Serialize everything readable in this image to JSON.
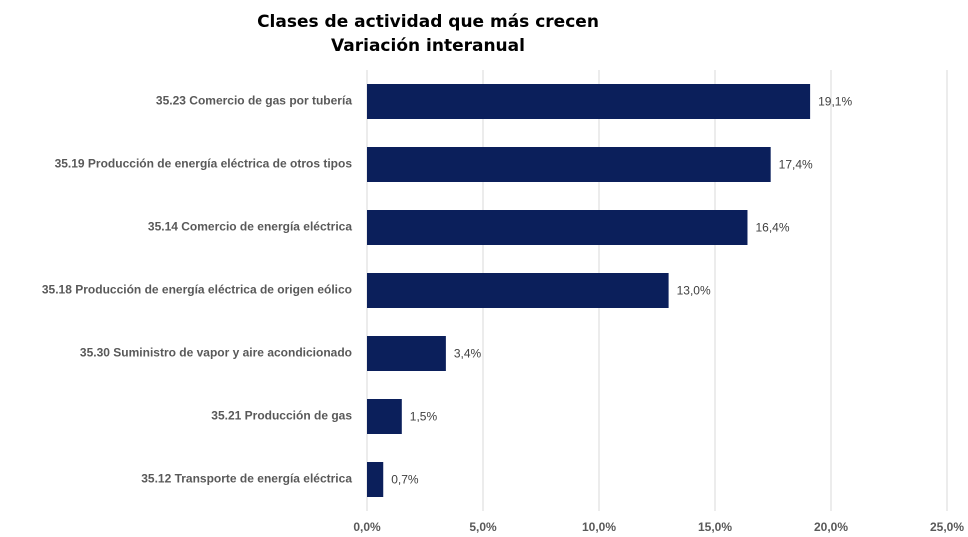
{
  "chart_data": {
    "type": "bar",
    "orientation": "horizontal",
    "title": "Clases de actividad que más crecen",
    "subtitle": "Variación interanual",
    "categories": [
      "35.23 Comercio de gas por tubería",
      "35.19 Producción de energía eléctrica de otros tipos",
      "35.14 Comercio de energía eléctrica",
      "35.18 Producción de energía eléctrica de origen eólico",
      "35.30 Suministro de vapor y aire acondicionado",
      "35.21 Producción de gas",
      "35.12 Transporte de energía eléctrica"
    ],
    "values": [
      19.1,
      17.4,
      16.4,
      13.0,
      3.4,
      1.5,
      0.7
    ],
    "value_labels": [
      "19,1%",
      "17,4%",
      "16,4%",
      "13,0%",
      "3,4%",
      "1,5%",
      "0,7%"
    ],
    "color": "#0b1f5b",
    "xlim": [
      0,
      25
    ],
    "xticks": [
      {
        "value": 0,
        "label": "0,0%"
      },
      {
        "value": 5,
        "label": "5,0%"
      },
      {
        "value": 10,
        "label": "10,0%"
      },
      {
        "value": 15,
        "label": "15,0%"
      },
      {
        "value": 20,
        "label": "20,0%"
      },
      {
        "value": 25,
        "label": "25,0%"
      }
    ],
    "grid": true
  }
}
